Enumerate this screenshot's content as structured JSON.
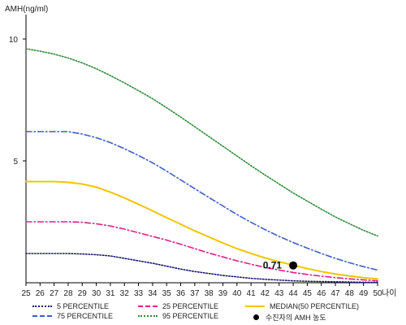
{
  "chart_data": {
    "type": "line",
    "title": "",
    "ylabel": "AMH(ng/ml)",
    "xlabel": "나이",
    "x": [
      25,
      26,
      27,
      28,
      29,
      30,
      31,
      32,
      33,
      34,
      35,
      36,
      37,
      38,
      39,
      40,
      41,
      42,
      43,
      44,
      45,
      46,
      47,
      48,
      49,
      50
    ],
    "xlim": [
      25,
      50
    ],
    "ylim": [
      0,
      11
    ],
    "yticks": [
      5,
      10
    ],
    "grid": false,
    "legend_position": "bottom",
    "series": [
      {
        "name": "5 PERCENTILE",
        "color": "#1a1a6e",
        "dash": "dotted",
        "values": [
          1.2,
          1.2,
          1.2,
          1.2,
          1.18,
          1.15,
          1.1,
          1.0,
          0.9,
          0.8,
          0.68,
          0.56,
          0.46,
          0.38,
          0.3,
          0.24,
          0.18,
          0.14,
          0.11,
          0.08,
          0.06,
          0.05,
          0.04,
          0.03,
          0.02,
          0.02
        ]
      },
      {
        "name": "25 PERCENTILE",
        "color": "#e0218a",
        "dash": "dashdot",
        "values": [
          2.5,
          2.5,
          2.5,
          2.5,
          2.48,
          2.42,
          2.33,
          2.2,
          2.05,
          1.9,
          1.75,
          1.58,
          1.4,
          1.22,
          1.06,
          0.9,
          0.76,
          0.63,
          0.52,
          0.42,
          0.34,
          0.27,
          0.21,
          0.16,
          0.12,
          0.08
        ]
      },
      {
        "name": "75 PERCENTILE",
        "color": "#3b5fc9",
        "dash": "dashdot",
        "values": [
          6.2,
          6.2,
          6.2,
          6.2,
          6.1,
          5.95,
          5.75,
          5.5,
          5.22,
          4.92,
          4.58,
          4.22,
          3.86,
          3.5,
          3.15,
          2.8,
          2.48,
          2.18,
          1.9,
          1.65,
          1.42,
          1.2,
          1.0,
          0.82,
          0.66,
          0.52
        ]
      },
      {
        "name": "MEDIAN(50 PERCENTILE)",
        "color": "#f2c500",
        "dash": "solid",
        "values": [
          4.15,
          4.15,
          4.15,
          4.12,
          4.05,
          3.92,
          3.72,
          3.48,
          3.22,
          2.95,
          2.67,
          2.4,
          2.13,
          1.88,
          1.63,
          1.4,
          1.2,
          1.02,
          0.86,
          0.72,
          0.58,
          0.46,
          0.36,
          0.28,
          0.21,
          0.16
        ]
      },
      {
        "name": "95 PERCENTILE",
        "color": "#2e8b3a",
        "dash": "dotted",
        "values": [
          9.6,
          9.5,
          9.38,
          9.22,
          9.02,
          8.78,
          8.5,
          8.2,
          7.88,
          7.55,
          7.18,
          6.8,
          6.4,
          6.0,
          5.6,
          5.2,
          4.8,
          4.42,
          4.05,
          3.68,
          3.35,
          3.02,
          2.7,
          2.42,
          2.15,
          1.92
        ]
      }
    ],
    "patient_point": {
      "name": "수진자의 AMH 농도",
      "x": 44,
      "y": 0.71,
      "label": "0.71",
      "color": "#000000"
    }
  }
}
